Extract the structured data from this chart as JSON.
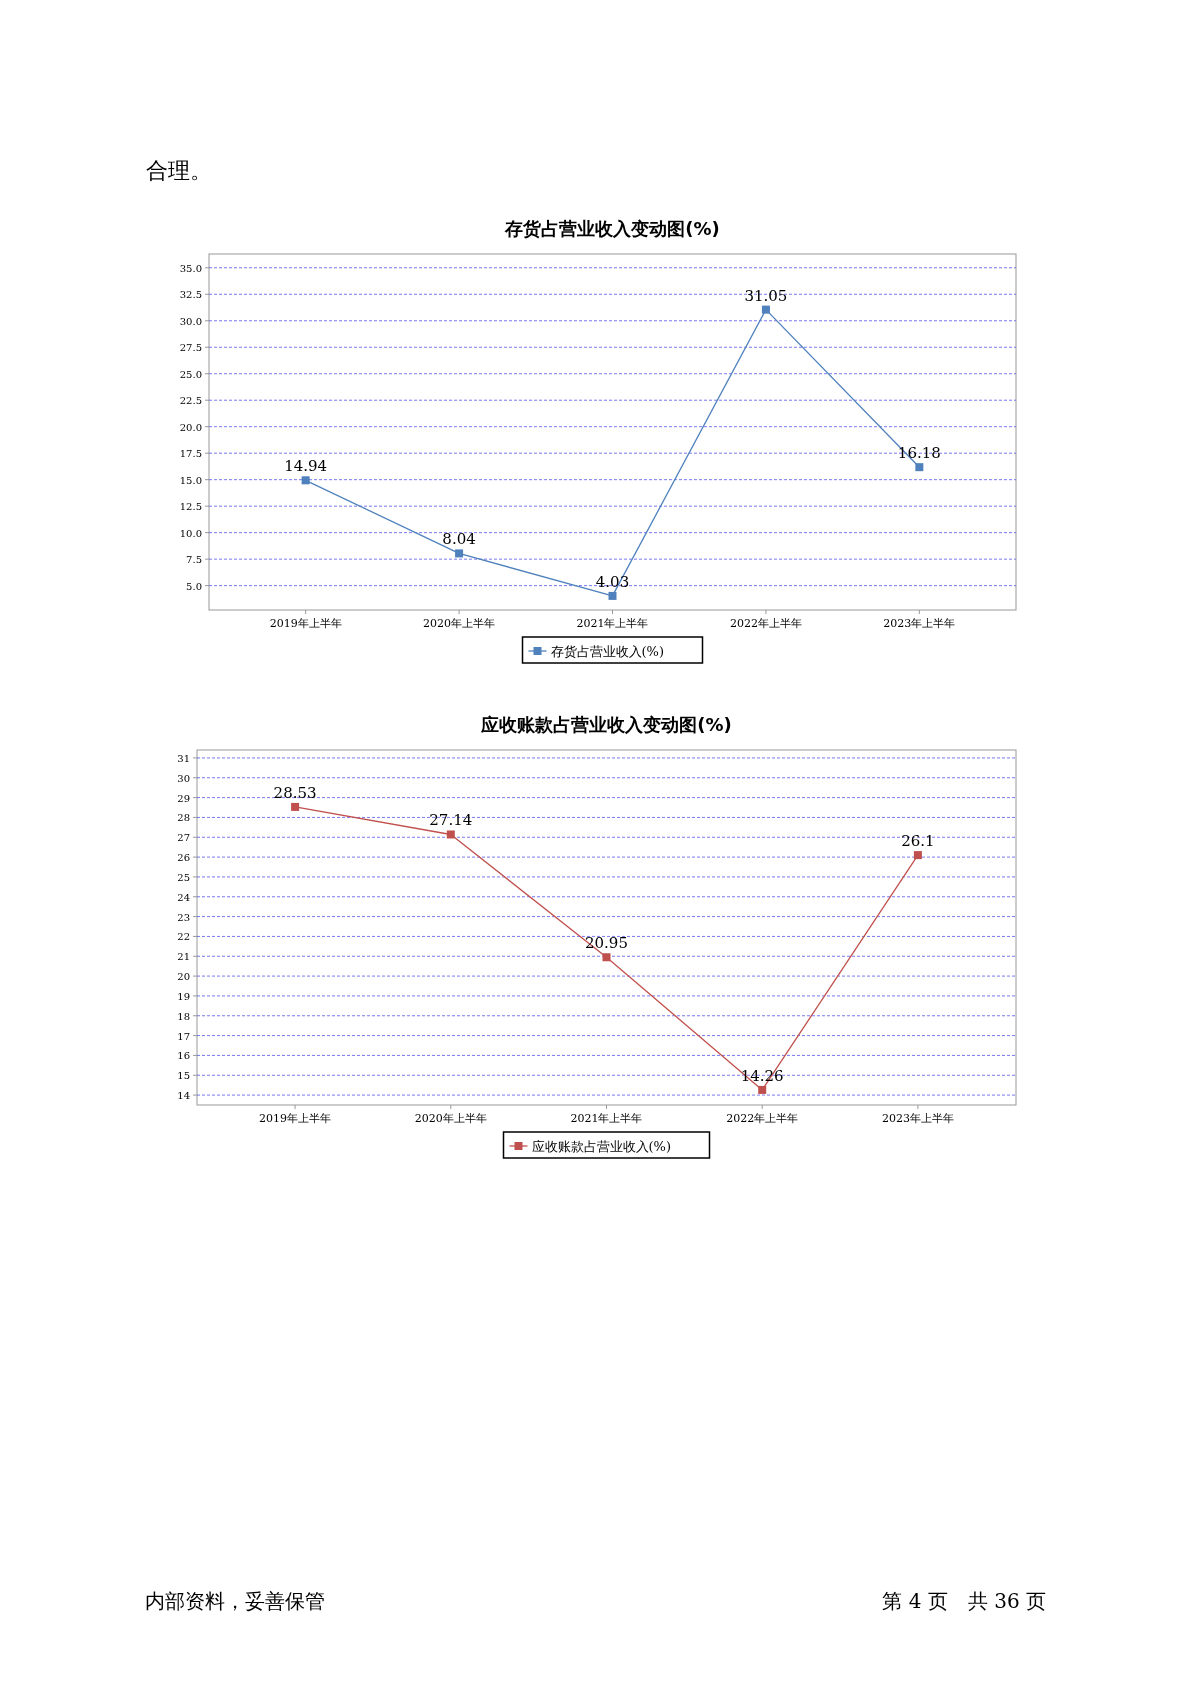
{
  "chart_data": [
    {
      "type": "line",
      "title": "存货占营业收入变动图(%)",
      "categories": [
        "2019年上半年",
        "2020年上半年",
        "2021年上半年",
        "2022年上半年",
        "2023年上半年"
      ],
      "series": [
        {
          "name": "存货占营业收入(%)",
          "color": "#4f81bd",
          "values": [
            14.94,
            8.04,
            4.03,
            31.05,
            16.18
          ]
        }
      ],
      "ylim": [
        2.7,
        36.3
      ],
      "yticks": [
        {
          "value": 5,
          "label": "5.0"
        },
        {
          "value": 7.5,
          "label": "7.5"
        },
        {
          "value": 10,
          "label": "10.0"
        },
        {
          "value": 12.5,
          "label": "12.5"
        },
        {
          "value": 15,
          "label": "15.0"
        },
        {
          "value": 17.5,
          "label": "17.5"
        },
        {
          "value": 20,
          "label": "20.0"
        },
        {
          "value": 22.5,
          "label": "22.5"
        },
        {
          "value": 25,
          "label": "25.0"
        },
        {
          "value": 27.5,
          "label": "27.5"
        },
        {
          "value": 30,
          "label": "30.0"
        },
        {
          "value": 32.5,
          "label": "32.5"
        },
        {
          "value": 35,
          "label": "35.0"
        }
      ],
      "grid": "y",
      "legend": "bottom",
      "marker": "square",
      "data_labels": true,
      "annotations": [
        "合理。"
      ]
    },
    {
      "type": "line",
      "title": "应收账款占营业收入变动图(%)",
      "categories": [
        "2019年上半年",
        "2020年上半年",
        "2021年上半年",
        "2022年上半年",
        "2023年上半年"
      ],
      "series": [
        {
          "name": "应收账款占营业收入(%)",
          "color": "#c0504d",
          "values": [
            28.53,
            27.14,
            20.95,
            14.26,
            26.1
          ]
        }
      ],
      "ylim": [
        13.5,
        31.4
      ],
      "yticks": [
        14,
        15,
        16,
        17,
        18,
        19,
        20,
        21,
        22,
        23,
        24,
        25,
        26,
        27,
        28,
        29,
        30,
        31
      ],
      "grid": "y",
      "legend": "bottom",
      "marker": "square",
      "data_labels": true,
      "annotations": [
        "内部资料，妥善保管",
        "第 4 页　共 36 页"
      ]
    }
  ]
}
